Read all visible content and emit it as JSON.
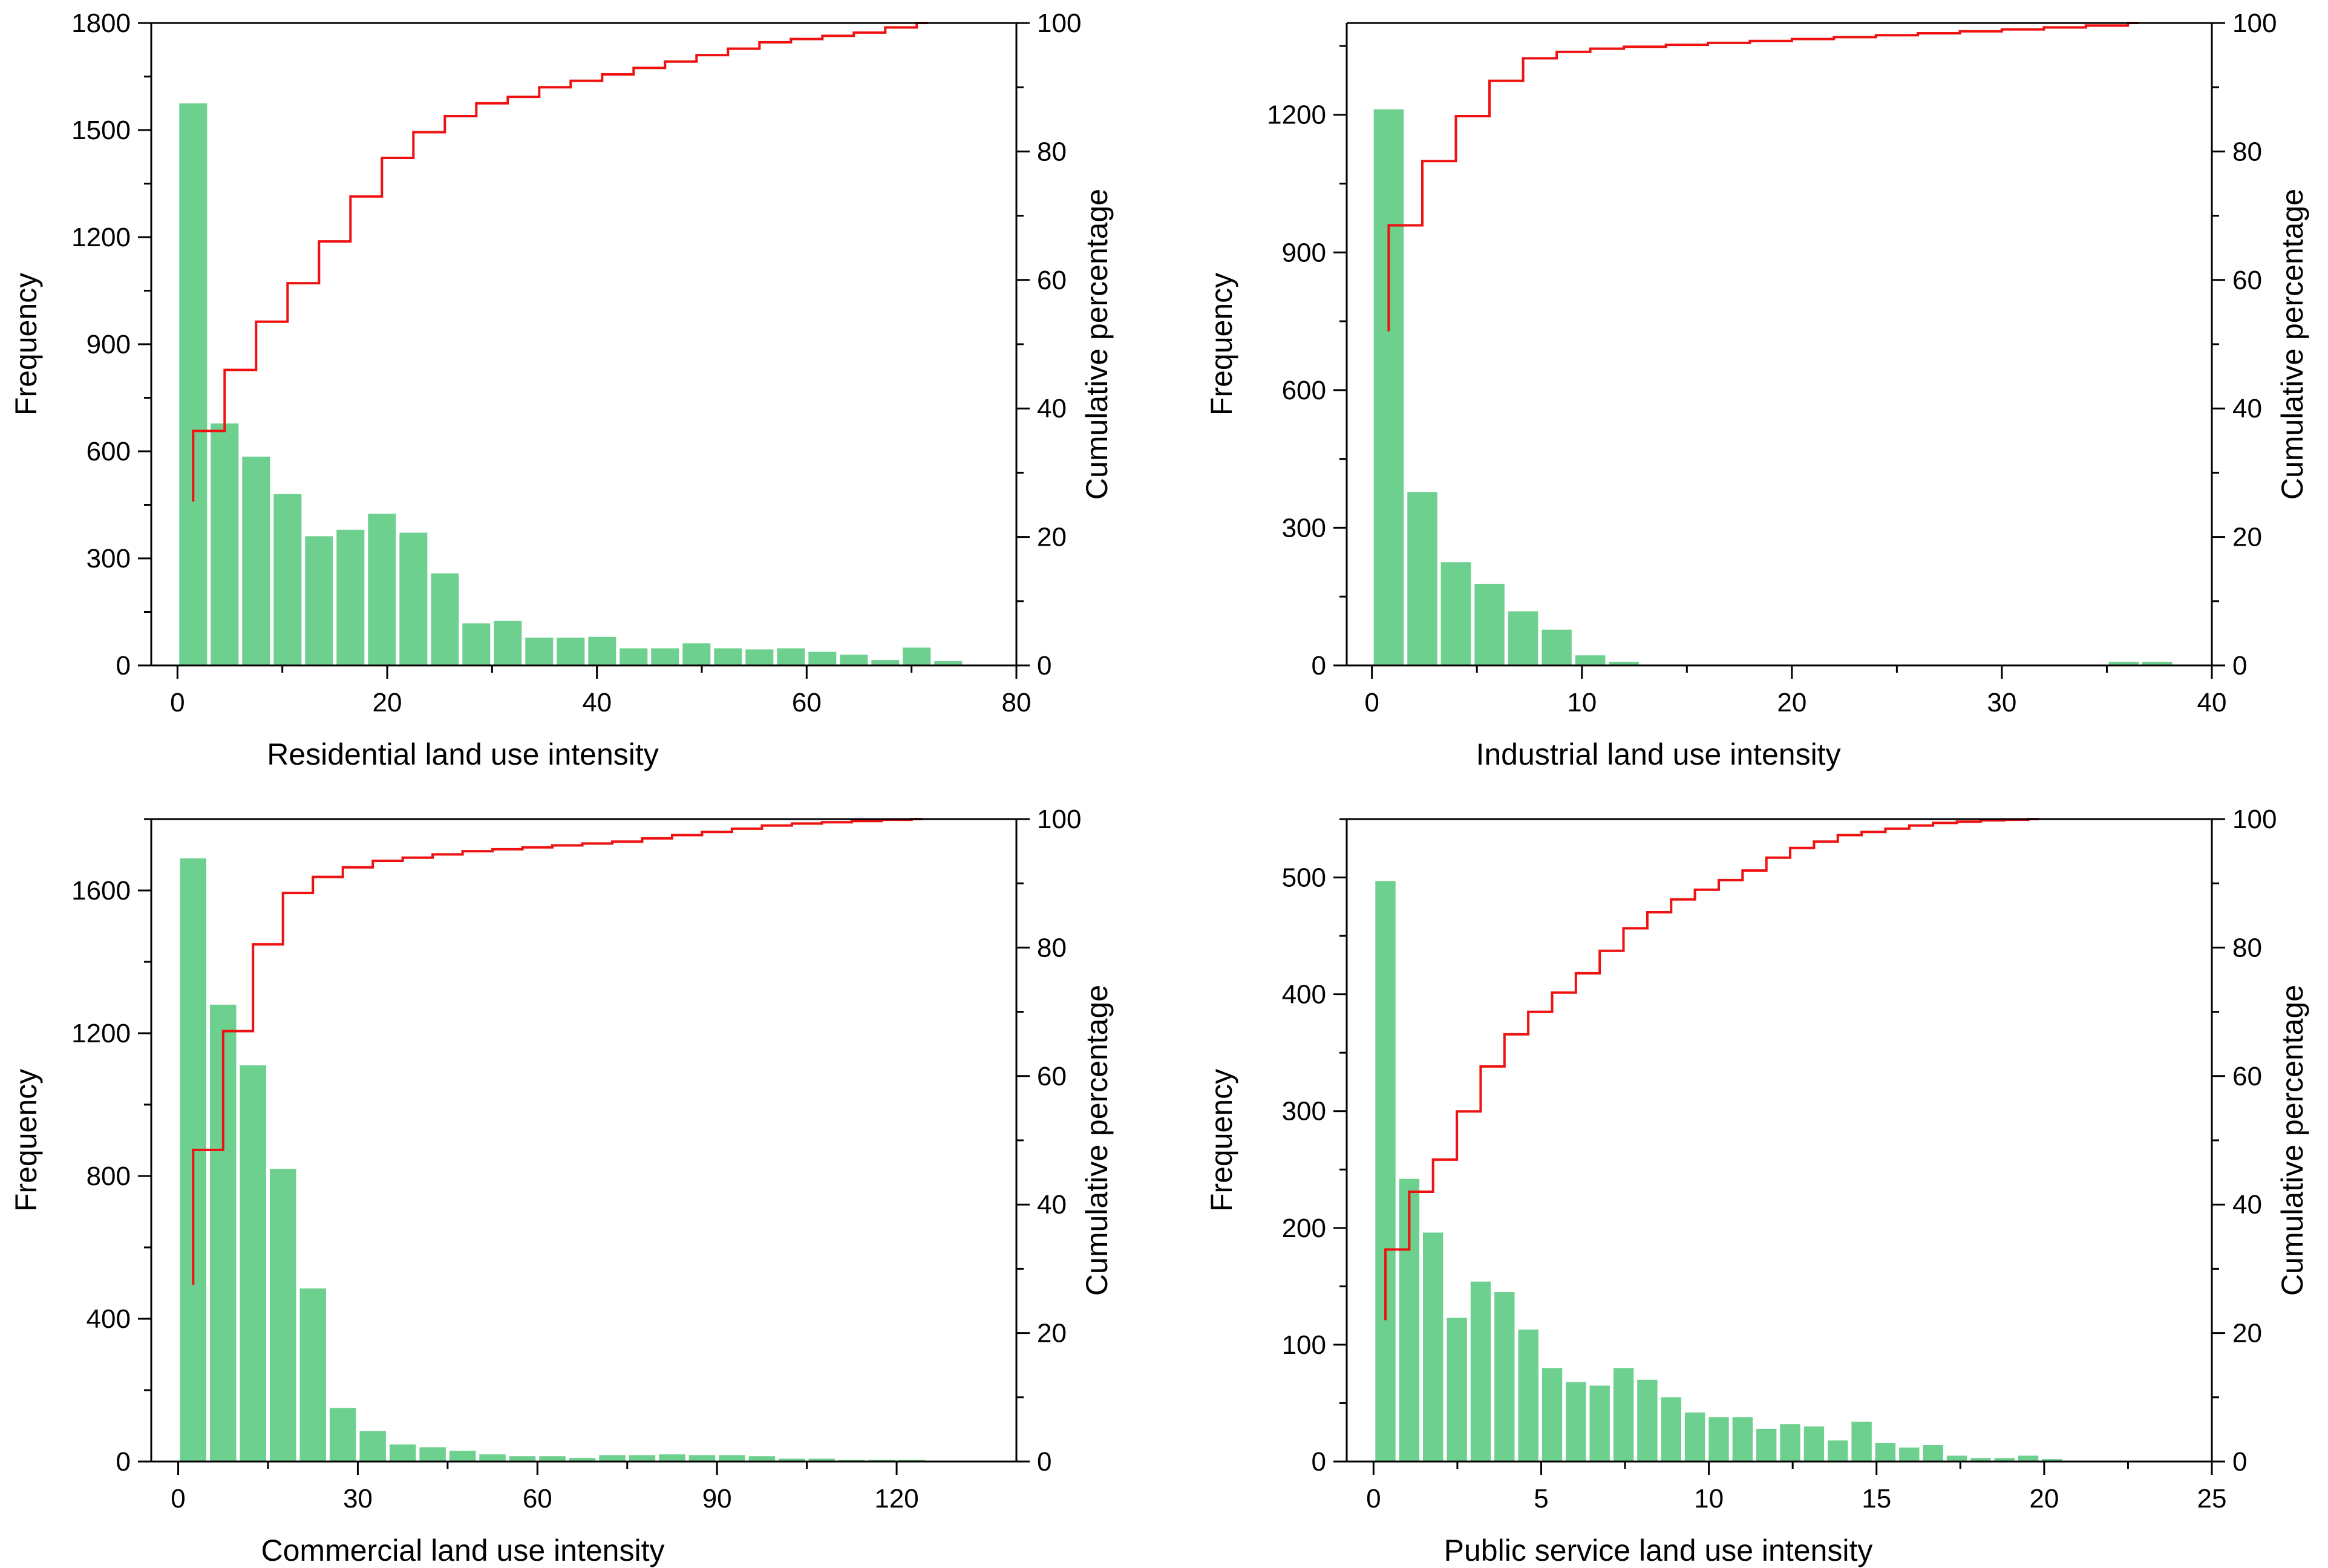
{
  "chart_data": [
    {
      "type": "bar",
      "xlabel": "Residential land use intensity",
      "ylabel": "Frequency",
      "y2label": "Cumulative percentage",
      "xlim": [
        -2.5,
        80
      ],
      "ylim": [
        0,
        1800
      ],
      "y2lim": [
        0,
        100
      ],
      "xticks": [
        0,
        20,
        40,
        60,
        80
      ],
      "yticks": [
        0,
        300,
        600,
        900,
        1200,
        1500,
        1800
      ],
      "y2ticks": [
        0,
        20,
        40,
        60,
        80,
        100
      ],
      "bin_width": 3,
      "x_centers": [
        1.5,
        4.5,
        7.5,
        10.5,
        13.5,
        16.5,
        19.5,
        22.5,
        25.5,
        28.5,
        31.5,
        34.5,
        37.5,
        40.5,
        43.5,
        46.5,
        49.5,
        52.5,
        55.5,
        58.5,
        61.5,
        64.5,
        67.5,
        70.5,
        73.5
      ],
      "values": [
        1575,
        678,
        585,
        480,
        362,
        380,
        425,
        372,
        258,
        118,
        125,
        78,
        78,
        80,
        48,
        48,
        62,
        48,
        45,
        48,
        38,
        30,
        15,
        50,
        12
      ],
      "cumulative": {
        "x": [
          1.5,
          4.5,
          7.5,
          10.5,
          13.5,
          16.5,
          19.5,
          22.5,
          25.5,
          28.5,
          31.5,
          34.5,
          37.5,
          40.5,
          43.5,
          46.5,
          49.5,
          52.5,
          55.5,
          58.5,
          61.5,
          64.5,
          67.5,
          70.5
        ],
        "y": [
          36.5,
          46.0,
          53.5,
          59.5,
          66.0,
          73.0,
          79.0,
          83.0,
          85.5,
          87.5,
          88.5,
          90.0,
          91.0,
          92.0,
          93.0,
          94.0,
          95.0,
          96.0,
          97.0,
          97.5,
          98.0,
          98.5,
          99.3,
          100.0
        ],
        "start_y": 25.5,
        "color": "#ee1111"
      },
      "bar_color": "#6dd08e"
    },
    {
      "type": "bar",
      "xlabel": "Industrial land use intensity",
      "ylabel": "Frequency",
      "y2label": "Cumulative percentage",
      "xlim": [
        -1.2,
        40
      ],
      "ylim": [
        0,
        1400
      ],
      "y2lim": [
        0,
        100
      ],
      "xticks": [
        0,
        10,
        20,
        30,
        40
      ],
      "yticks": [
        0,
        300,
        600,
        900,
        1200
      ],
      "y2ticks": [
        0,
        20,
        40,
        60,
        80,
        100
      ],
      "bin_width": 1.6,
      "x_centers": [
        0.8,
        2.4,
        4.0,
        5.6,
        7.2,
        8.8,
        10.4,
        12.0,
        35.8,
        37.4
      ],
      "values": [
        1212,
        378,
        225,
        178,
        118,
        78,
        22,
        8,
        8,
        8
      ],
      "cumulative": {
        "x": [
          0.8,
          2.4,
          4.0,
          5.6,
          7.2,
          8.8,
          10.4,
          12.0,
          14.0,
          16.0,
          18.0,
          20.0,
          22.0,
          24.0,
          26.0,
          28.0,
          30.0,
          32.0,
          34.0,
          36.0
        ],
        "y": [
          68.5,
          78.5,
          85.5,
          91.0,
          94.5,
          95.5,
          96.0,
          96.3,
          96.6,
          96.9,
          97.2,
          97.5,
          97.8,
          98.1,
          98.4,
          98.7,
          99.0,
          99.3,
          99.6,
          100.0
        ],
        "start_y": 52.0,
        "color": "#ee1111"
      },
      "bar_color": "#6dd08e"
    },
    {
      "type": "bar",
      "xlabel": "Commercial land use intensity",
      "ylabel": "Frequency",
      "y2label": "Cumulative percentage",
      "xlim": [
        -4.5,
        140
      ],
      "ylim": [
        0,
        1800
      ],
      "y2lim": [
        0,
        100
      ],
      "xticks": [
        0,
        30,
        60,
        90,
        120
      ],
      "yticks": [
        0,
        400,
        800,
        1200,
        1600
      ],
      "y2ticks": [
        0,
        20,
        40,
        60,
        80,
        100
      ],
      "bin_width": 5,
      "x_centers": [
        2.5,
        7.5,
        12.5,
        17.5,
        22.5,
        27.5,
        32.5,
        37.5,
        42.5,
        47.5,
        52.5,
        57.5,
        62.5,
        67.5,
        72.5,
        77.5,
        82.5,
        87.5,
        92.5,
        97.5,
        102.5,
        107.5,
        112.5,
        117.5,
        122.5
      ],
      "values": [
        1690,
        1280,
        1110,
        820,
        485,
        150,
        85,
        48,
        40,
        30,
        20,
        15,
        15,
        10,
        18,
        18,
        20,
        18,
        18,
        15,
        8,
        8,
        5,
        5,
        5
      ],
      "cumulative": {
        "x": [
          2.5,
          7.5,
          12.5,
          17.5,
          22.5,
          27.5,
          32.5,
          37.5,
          42.5,
          47.5,
          52.5,
          57.5,
          62.5,
          67.5,
          72.5,
          77.5,
          82.5,
          87.5,
          92.5,
          97.5,
          102.5,
          107.5,
          112.5,
          117.5,
          122.5
        ],
        "y": [
          48.5,
          67.0,
          80.5,
          88.5,
          91.0,
          92.5,
          93.5,
          94.0,
          94.5,
          95.0,
          95.3,
          95.6,
          95.9,
          96.2,
          96.5,
          97.0,
          97.5,
          98.0,
          98.5,
          99.0,
          99.3,
          99.5,
          99.7,
          99.9,
          100.0
        ],
        "start_y": 27.5,
        "color": "#ee1111"
      },
      "bar_color": "#6dd08e"
    },
    {
      "type": "bar",
      "xlabel": "Public service land use intensity",
      "ylabel": "Frequency",
      "y2label": "Cumulative percentage",
      "xlim": [
        -0.8,
        25
      ],
      "ylim": [
        0,
        550
      ],
      "y2lim": [
        0,
        100
      ],
      "xticks": [
        0,
        5,
        10,
        15,
        20,
        25
      ],
      "yticks": [
        0,
        100,
        200,
        300,
        400,
        500
      ],
      "y2ticks": [
        0,
        20,
        40,
        60,
        80,
        100
      ],
      "bin_width": 0.71,
      "x_centers": [
        0.355,
        1.065,
        1.775,
        2.485,
        3.195,
        3.905,
        4.615,
        5.325,
        6.035,
        6.745,
        7.455,
        8.165,
        8.875,
        9.585,
        10.295,
        11.005,
        11.715,
        12.425,
        13.135,
        13.845,
        14.555,
        15.265,
        15.975,
        16.685,
        17.395,
        18.105,
        18.815,
        19.525,
        20.235
      ],
      "values": [
        497,
        242,
        196,
        123,
        154,
        145,
        113,
        80,
        68,
        65,
        80,
        70,
        55,
        42,
        38,
        38,
        28,
        32,
        30,
        18,
        34,
        16,
        12,
        14,
        5,
        3,
        3,
        5,
        2
      ],
      "cumulative": {
        "x": [
          0.355,
          1.065,
          1.775,
          2.485,
          3.195,
          3.905,
          4.615,
          5.325,
          6.035,
          6.745,
          7.455,
          8.165,
          8.875,
          9.585,
          10.295,
          11.005,
          11.715,
          12.425,
          13.135,
          13.845,
          14.555,
          15.265,
          15.975,
          16.685,
          17.395,
          18.105,
          18.815,
          19.525
        ],
        "y": [
          33.0,
          42.0,
          47.0,
          54.5,
          61.5,
          66.5,
          70.0,
          73.0,
          76.0,
          79.5,
          83.0,
          85.5,
          87.5,
          89.0,
          90.5,
          92.0,
          94.0,
          95.5,
          96.5,
          97.5,
          98.0,
          98.5,
          99.0,
          99.4,
          99.6,
          99.8,
          99.9,
          100.0
        ],
        "start_y": 22.0,
        "color": "#ee1111"
      },
      "bar_color": "#6dd08e"
    }
  ]
}
